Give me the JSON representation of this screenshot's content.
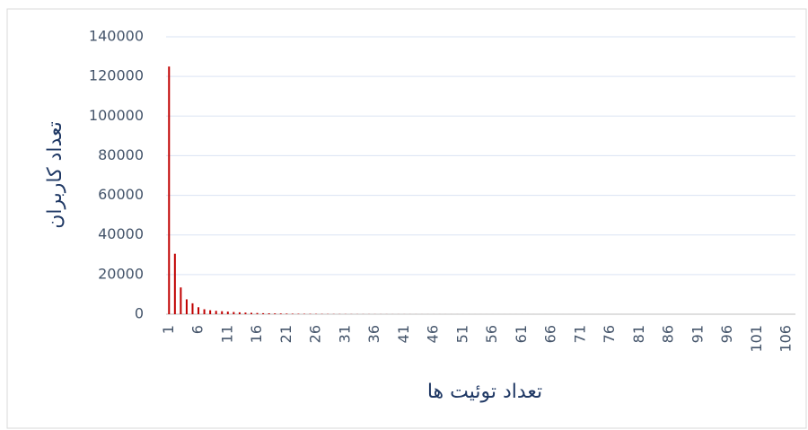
{
  "chart_data": {
    "type": "bar",
    "y_axis_label": "تعداد کاربران",
    "x_axis_label": "تعداد توئیت ها",
    "color": "#c00000",
    "grid": true,
    "ylim": [
      0,
      140000
    ],
    "yticks": [
      0,
      20000,
      40000,
      60000,
      80000,
      100000,
      120000,
      140000
    ],
    "categories": [
      1,
      null,
      null,
      null,
      null,
      6,
      null,
      null,
      null,
      null,
      11,
      null,
      null,
      null,
      null,
      16,
      null,
      null,
      null,
      null,
      21,
      null,
      null,
      null,
      null,
      26,
      null,
      null,
      null,
      null,
      31,
      null,
      null,
      null,
      null,
      36,
      null,
      null,
      null,
      null,
      41,
      null,
      null,
      null,
      null,
      46,
      null,
      null,
      null,
      null,
      51,
      null,
      null,
      null,
      null,
      56,
      null,
      null,
      null,
      null,
      61,
      null,
      null,
      null,
      null,
      66,
      null,
      null,
      null,
      null,
      71,
      null,
      null,
      null,
      null,
      76,
      null,
      null,
      null,
      null,
      81,
      null,
      null,
      null,
      null,
      86,
      null,
      null,
      null,
      null,
      91,
      null,
      null,
      null,
      null,
      96,
      null,
      null,
      null,
      null,
      101,
      null,
      null,
      null,
      null,
      106,
      null
    ],
    "values": [
      125000,
      30500,
      13500,
      7500,
      5500,
      3500,
      2500,
      2000,
      1700,
      1500,
      1300,
      1100,
      950,
      800,
      700,
      600,
      500,
      450,
      400,
      350,
      300,
      250,
      220,
      200,
      180,
      160,
      140,
      120,
      100,
      90,
      80,
      70,
      60,
      55,
      50,
      45,
      40,
      35,
      30,
      28,
      25,
      22,
      20,
      18,
      16,
      15,
      14,
      13,
      12,
      11,
      10,
      10,
      9,
      9,
      8,
      8,
      7,
      7,
      6,
      6,
      5,
      5,
      5,
      4,
      4,
      4,
      4,
      3,
      3,
      3,
      3,
      3,
      2,
      2,
      2,
      2,
      2,
      2,
      2,
      2,
      1,
      1,
      1,
      1,
      1,
      1,
      1,
      1,
      1,
      1,
      1,
      1,
      1,
      1,
      1,
      1,
      1,
      1,
      1,
      1,
      1,
      1,
      1,
      1,
      1,
      1,
      1
    ]
  }
}
